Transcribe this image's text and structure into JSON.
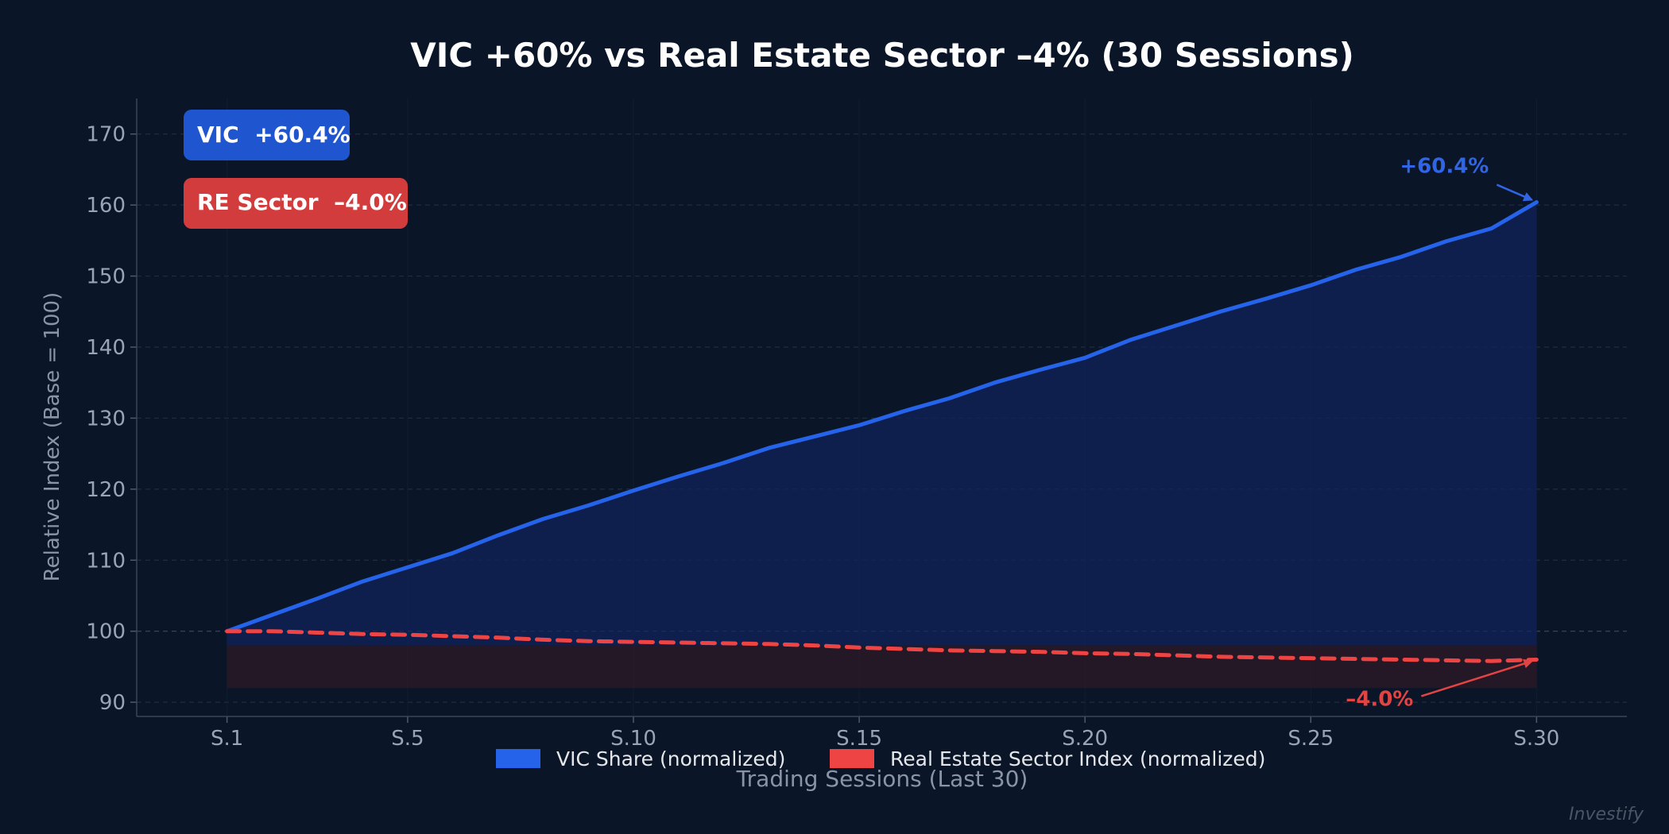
{
  "chart_data": {
    "type": "line",
    "title": "VIC +60% vs Real Estate Sector –4% (30 Sessions)",
    "xlabel": "Trading Sessions (Last 30)",
    "ylabel": "Relative Index (Base = 100)",
    "ylim": [
      88,
      175
    ],
    "xlim": [
      -1,
      32
    ],
    "yticks": [
      90,
      100,
      110,
      120,
      130,
      140,
      150,
      160,
      170
    ],
    "xticks": [
      {
        "session": 1,
        "label": "S.1"
      },
      {
        "session": 5,
        "label": "S.5"
      },
      {
        "session": 10,
        "label": "S.10"
      },
      {
        "session": 15,
        "label": "S.15"
      },
      {
        "session": 20,
        "label": "S.20"
      },
      {
        "session": 25,
        "label": "S.25"
      },
      {
        "session": 30,
        "label": "S.30"
      }
    ],
    "x": [
      1,
      2,
      3,
      4,
      5,
      6,
      7,
      8,
      9,
      10,
      11,
      12,
      13,
      14,
      15,
      16,
      17,
      18,
      19,
      20,
      21,
      22,
      23,
      24,
      25,
      26,
      27,
      28,
      29,
      30
    ],
    "series": [
      {
        "name": "VIC Share (normalized)",
        "color": "#2563eb",
        "style": "solid",
        "values": [
          100.0,
          102.3,
          104.6,
          107.0,
          109.0,
          111.0,
          113.5,
          115.8,
          117.7,
          119.8,
          121.8,
          123.7,
          125.8,
          127.4,
          129.0,
          131.0,
          132.8,
          135.0,
          136.8,
          138.5,
          141.0,
          143.0,
          145.0,
          146.8,
          148.7,
          150.9,
          152.7,
          154.9,
          156.7,
          160.4
        ]
      },
      {
        "name": "Real Estate Sector Index (normalized)",
        "color": "#ef4444",
        "style": "dashed",
        "values": [
          100.0,
          100.0,
          99.8,
          99.6,
          99.5,
          99.3,
          99.1,
          98.8,
          98.6,
          98.5,
          98.4,
          98.3,
          98.2,
          98.0,
          97.7,
          97.5,
          97.3,
          97.2,
          97.1,
          96.9,
          96.8,
          96.6,
          96.4,
          96.3,
          96.2,
          96.1,
          96.0,
          95.9,
          95.8,
          96.0
        ]
      }
    ],
    "vic_fill_base": 98,
    "re_band": [
      92,
      98
    ],
    "legend": {
      "placement": "bottom-center",
      "entries": [
        {
          "label": "VIC Share (normalized)",
          "color": "#2563eb"
        },
        {
          "label": "Real Estate Sector Index (normalized)",
          "color": "#ef4444"
        }
      ]
    },
    "badges": [
      {
        "text": "VIC  +60.4%",
        "color": "#1f56d0"
      },
      {
        "text": "RE Sector  –4.0%",
        "color": "#d23c3c"
      }
    ],
    "annotations": [
      {
        "text": "+60.4%",
        "color": "#2f65e6",
        "target": {
          "session": 30,
          "value": 160.4
        }
      },
      {
        "text": "–4.0%",
        "color": "#e24444",
        "target": {
          "session": 30,
          "value": 96.0
        }
      }
    ],
    "watermark": "Investify",
    "grid": true
  }
}
